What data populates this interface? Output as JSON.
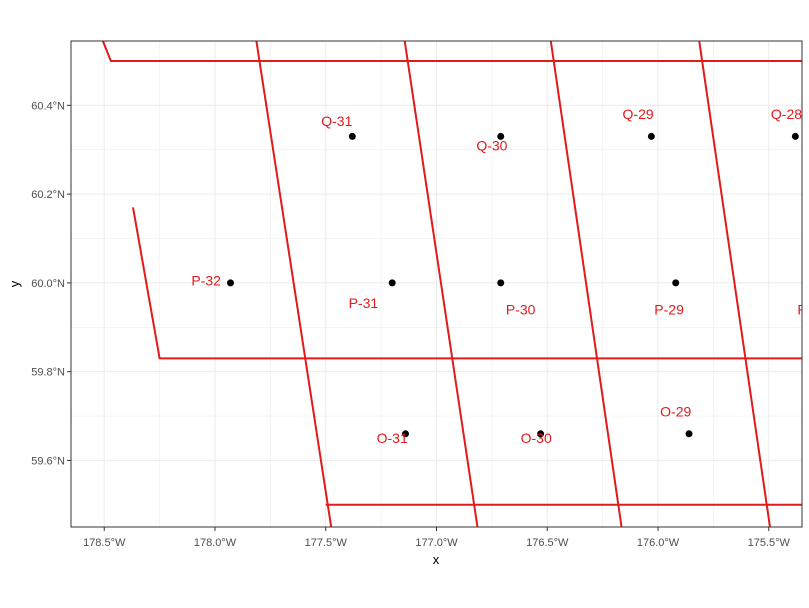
{
  "chart_data": {
    "type": "scatter",
    "xlabel": "x",
    "ylabel": "y",
    "xlim": [
      -178.65,
      -175.35
    ],
    "ylim": [
      59.45,
      60.545
    ],
    "grid": true,
    "x_ticks": [
      {
        "value": -178.5,
        "label": "178.5°W"
      },
      {
        "value": -178.0,
        "label": "178.0°W"
      },
      {
        "value": -177.5,
        "label": "177.5°W"
      },
      {
        "value": -177.0,
        "label": "177.0°W"
      },
      {
        "value": -176.5,
        "label": "176.5°W"
      },
      {
        "value": -176.0,
        "label": "176.0°W"
      },
      {
        "value": -175.5,
        "label": "175.5°W"
      }
    ],
    "y_ticks": [
      {
        "value": 59.6,
        "label": "59.6°N"
      },
      {
        "value": 59.8,
        "label": "59.8°N"
      },
      {
        "value": 60.0,
        "label": "60.0°N"
      },
      {
        "value": 60.2,
        "label": "60.2°N"
      },
      {
        "value": 60.4,
        "label": "60.4°N"
      }
    ],
    "points": [
      {
        "x": -177.38,
        "y": 60.33
      },
      {
        "x": -176.71,
        "y": 60.33
      },
      {
        "x": -176.03,
        "y": 60.33
      },
      {
        "x": -175.38,
        "y": 60.33
      },
      {
        "x": -177.93,
        "y": 60.0
      },
      {
        "x": -177.2,
        "y": 60.0
      },
      {
        "x": -176.71,
        "y": 60.0
      },
      {
        "x": -175.92,
        "y": 60.0
      },
      {
        "x": -177.14,
        "y": 59.66
      },
      {
        "x": -176.53,
        "y": 59.66
      },
      {
        "x": -175.86,
        "y": 59.66
      }
    ],
    "labels": [
      {
        "text": "Q-31",
        "x": -177.45,
        "y": 60.365
      },
      {
        "text": "Q-30",
        "x": -176.75,
        "y": 60.31
      },
      {
        "text": "Q-29",
        "x": -176.09,
        "y": 60.38
      },
      {
        "text": "Q-28",
        "x": -175.42,
        "y": 60.38
      },
      {
        "text": "P-32",
        "x": -178.04,
        "y": 60.005
      },
      {
        "text": "P-31",
        "x": -177.33,
        "y": 59.955
      },
      {
        "text": "P-30",
        "x": -176.62,
        "y": 59.94
      },
      {
        "text": "P-29",
        "x": -175.95,
        "y": 59.94
      },
      {
        "text": "P",
        "x": -175.35,
        "y": 59.94
      },
      {
        "text": "O-31",
        "x": -177.2,
        "y": 59.65
      },
      {
        "text": "O-30",
        "x": -176.55,
        "y": 59.65
      },
      {
        "text": "O-29",
        "x": -175.92,
        "y": 59.71
      }
    ],
    "polygons": [
      [
        [
          -178.55,
          60.6
        ],
        [
          -178.47,
          60.5
        ],
        [
          -175.3,
          60.5
        ],
        [
          -175.3,
          60.6
        ]
      ],
      [
        [
          -178.37,
          60.17
        ],
        [
          -178.25,
          59.83
        ],
        [
          -175.3,
          59.83
        ],
        [
          -175.3,
          60.17
        ]
      ],
      [
        [
          -177.5,
          59.5
        ],
        [
          -175.3,
          59.5
        ]
      ],
      [
        [
          -177.83,
          60.6
        ],
        [
          -177.46,
          59.4
        ]
      ],
      [
        [
          -177.16,
          60.6
        ],
        [
          -176.8,
          59.4
        ]
      ],
      [
        [
          -176.5,
          60.6
        ],
        [
          -176.15,
          59.4
        ]
      ],
      [
        [
          -175.83,
          60.6
        ],
        [
          -175.48,
          59.4
        ]
      ]
    ],
    "colors": {
      "tile": "#e31a1c",
      "point": "#000000",
      "grid": "#ebebeb",
      "panel_border": "#333333"
    }
  }
}
